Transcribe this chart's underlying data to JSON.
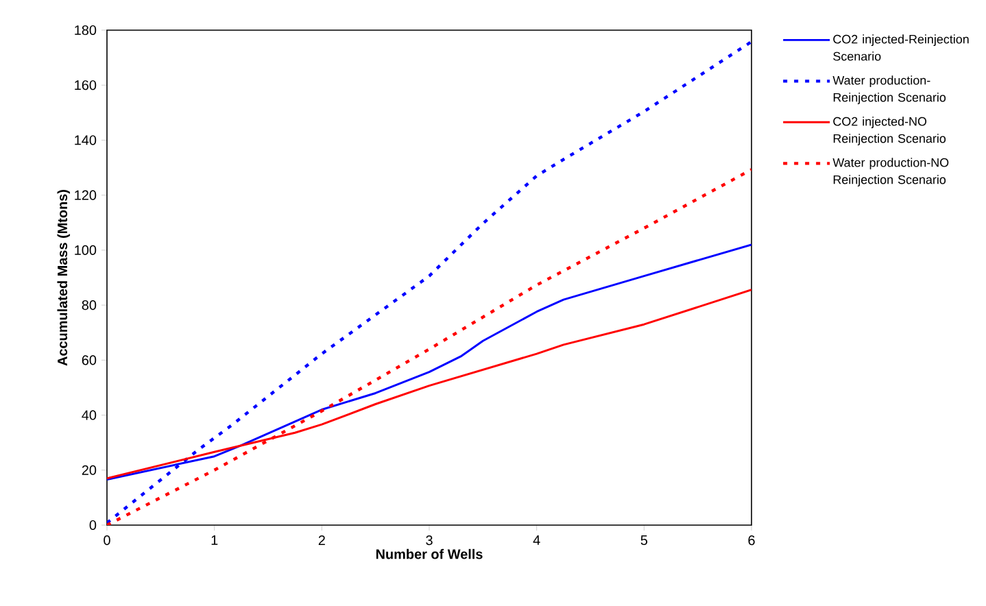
{
  "chart_data": {
    "type": "line",
    "xlabel": "Number of Wells",
    "ylabel": "Accumulated Mass (Mtons)",
    "xlim": [
      0,
      6
    ],
    "ylim": [
      0,
      180
    ],
    "xticks": [
      0,
      1,
      2,
      3,
      4,
      5,
      6
    ],
    "yticks": [
      0,
      20,
      40,
      60,
      80,
      100,
      120,
      140,
      160,
      180
    ],
    "legend": "right",
    "grid": false,
    "marker": "none",
    "series": [
      {
        "name": "CO2 injected-Reinjection Scenario",
        "color": "#0000ff",
        "line_style": "solid",
        "x": [
          0,
          1,
          1.25,
          2,
          2.5,
          3,
          3.3,
          3.5,
          4,
          4.25,
          5,
          6
        ],
        "values": [
          16.6,
          25,
          29,
          42,
          48,
          55.7,
          61.5,
          67,
          77.6,
          82,
          90.6,
          102
        ]
      },
      {
        "name": "Water production-Reinjection Scenario",
        "color": "#0000ff",
        "line_style": "dotted",
        "x": [
          0,
          0.85,
          1.17,
          2,
          3,
          3.5,
          4,
          4.25,
          5,
          6
        ],
        "values": [
          0.8,
          27.4,
          36.6,
          62.3,
          90.6,
          109.7,
          127,
          133,
          150.4,
          175.8
        ]
      },
      {
        "name": "CO2 injected-NO Reinjection Scenario",
        "color": "#ff0000",
        "line_style": "solid",
        "x": [
          0,
          1,
          1.75,
          2,
          2.5,
          3,
          4,
          4.25,
          5,
          6
        ],
        "values": [
          17,
          26.6,
          33.6,
          36.6,
          44,
          50.7,
          62.3,
          65.6,
          73,
          85.6
        ]
      },
      {
        "name": "Water production-NO Reinjection Scenario",
        "color": "#ff0000",
        "line_style": "dotted",
        "x": [
          0,
          1,
          2,
          3,
          4,
          5,
          6
        ],
        "values": [
          0,
          20,
          41.5,
          64,
          87.3,
          108,
          129.3
        ]
      }
    ]
  }
}
